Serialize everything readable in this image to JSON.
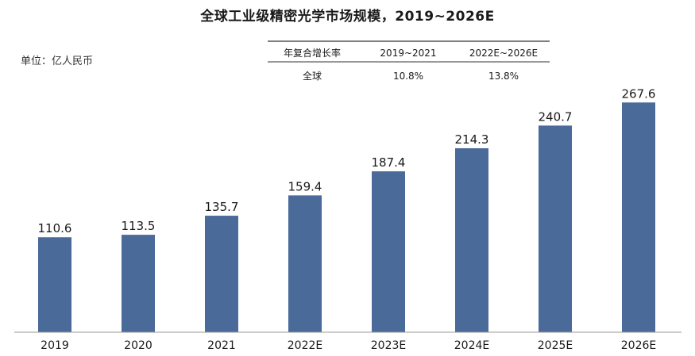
{
  "chart_data": {
    "type": "bar",
    "title": "全球工业级精密光学市场规模，2019~2026E",
    "unit_label": "单位：亿人民币",
    "categories": [
      "2019",
      "2020",
      "2021",
      "2022E",
      "2023E",
      "2024E",
      "2025E",
      "2026E"
    ],
    "values": [
      110.6,
      113.5,
      135.7,
      159.4,
      187.4,
      214.3,
      240.7,
      267.6
    ],
    "value_labels": [
      "110.6",
      "113.5",
      "135.7",
      "159.4",
      "187.4",
      "214.3",
      "240.7",
      "267.6"
    ],
    "ylim": [
      0,
      290
    ],
    "grid": false,
    "bar_color": "#4a6a9a",
    "cagr_table": {
      "header": [
        "年复合增长率",
        "2019~2021",
        "2022E~2026E"
      ],
      "rows": [
        [
          "全球",
          "10.8%",
          "13.8%"
        ]
      ]
    }
  }
}
